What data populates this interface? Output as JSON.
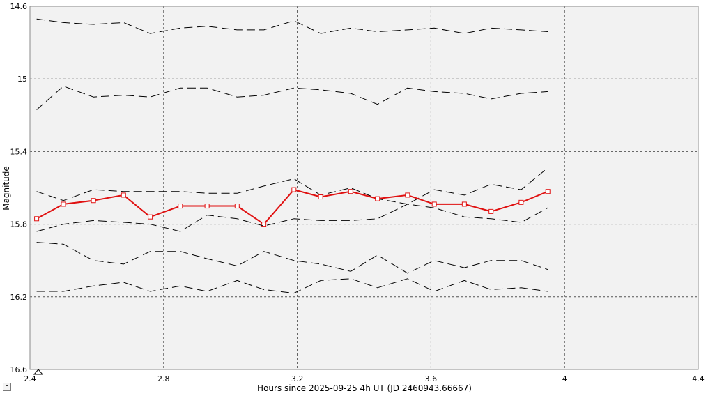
{
  "chart_data": {
    "type": "line",
    "xlabel": "Hours since 2025-09-25 4h UT (JD 2460943.66667)",
    "ylabel": "Magnitude",
    "xlim": [
      2.4,
      4.4
    ],
    "ylim": [
      14.6,
      16.6
    ],
    "y_inverted": true,
    "x_ticks": [
      "2.4",
      "2.8",
      "3.2",
      "3.6",
      "4",
      "4.4"
    ],
    "y_ticks": [
      "14.6",
      "15",
      "15.4",
      "15.8",
      "16.2",
      "16.6"
    ],
    "grid": true,
    "x": [
      2.42,
      2.5,
      2.59,
      2.68,
      2.76,
      2.85,
      2.93,
      3.02,
      3.1,
      3.19,
      3.27,
      3.36,
      3.44,
      3.53,
      3.61,
      3.7,
      3.78,
      3.87,
      3.95
    ],
    "series": [
      {
        "style": "dashed",
        "color": "#000000",
        "values": [
          14.67,
          14.69,
          14.7,
          14.69,
          14.75,
          14.72,
          14.71,
          14.73,
          14.73,
          14.68,
          14.75,
          14.72,
          14.74,
          14.73,
          14.72,
          14.75,
          14.72,
          14.73,
          14.74
        ]
      },
      {
        "style": "dashed",
        "color": "#000000",
        "values": [
          15.17,
          15.04,
          15.1,
          15.09,
          15.1,
          15.05,
          15.05,
          15.1,
          15.09,
          15.05,
          15.06,
          15.08,
          15.14,
          15.05,
          15.07,
          15.08,
          15.11,
          15.08,
          15.07
        ]
      },
      {
        "style": "dashed",
        "color": "#000000",
        "values": [
          15.62,
          15.67,
          15.61,
          15.62,
          15.62,
          15.62,
          15.63,
          15.63,
          15.59,
          15.55,
          15.64,
          15.6,
          15.66,
          15.69,
          15.61,
          15.64,
          15.58,
          15.61,
          15.49
        ]
      },
      {
        "style": "solid",
        "color": "#e01010",
        "marker": "square",
        "values": [
          15.77,
          15.69,
          15.67,
          15.64,
          15.76,
          15.7,
          15.7,
          15.7,
          15.8,
          15.61,
          15.65,
          15.62,
          15.66,
          15.64,
          15.69,
          15.69,
          15.73,
          15.68,
          15.62
        ]
      },
      {
        "style": "dashed",
        "color": "#000000",
        "values": [
          15.84,
          15.8,
          15.78,
          15.79,
          15.8,
          15.84,
          15.75,
          15.77,
          15.81,
          15.77,
          15.78,
          15.78,
          15.77,
          15.69,
          15.71,
          15.76,
          15.77,
          15.79,
          15.71
        ]
      },
      {
        "style": "dashed",
        "color": "#000000",
        "values": [
          15.9,
          15.91,
          16.0,
          16.02,
          15.95,
          15.95,
          15.99,
          16.03,
          15.95,
          16.0,
          16.02,
          16.06,
          15.97,
          16.07,
          16.0,
          16.04,
          16.0,
          16.0,
          16.05
        ]
      },
      {
        "style": "dashed",
        "color": "#000000",
        "values": [
          16.17,
          16.17,
          16.14,
          16.12,
          16.17,
          16.14,
          16.17,
          16.11,
          16.16,
          16.18,
          16.11,
          16.1,
          16.15,
          16.1,
          16.17,
          16.11,
          16.16,
          16.15,
          16.17
        ]
      }
    ]
  }
}
